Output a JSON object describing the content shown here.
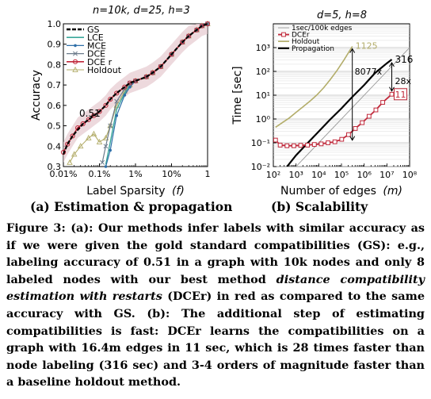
{
  "left_title": "n=10k, d=25, h=3",
  "right_title": "d=5, h=8",
  "subcaption_a": "(a) Estimation & propagation",
  "subcaption_b": "(b) Scalability",
  "caption": {
    "p1": "Figure 3: (a): Our methods infer labels with similar accuracy as if we were given the gold standard compatibilities (GS): e.g., labeling accuracy of 0.51 in a graph with 10k nodes and only 8 labeled nodes with our best method ",
    "em1": "distance compatibility estimation with restarts",
    "p2": " (DCEr) in red as compared to the same accuracy with GS. (b): The additional step of estimating compatibilities is fast: DCEr learns the compatibilities on a graph with 16.4m edges in 11 sec, which is 28 times faster than node labeling (316 sec) and 3-4 orders of magnitude faster than a baseline holdout method."
  },
  "colors": {
    "GS": "#000000",
    "LCE": "#3aa89b",
    "MCE": "#2e6fa8",
    "DCE": "#6b7a8a",
    "DCEr": "#c0283a",
    "Holdout": "#b3ad6a",
    "Propagation": "#000000",
    "ref": "#999999"
  },
  "chart_data": [
    {
      "type": "line",
      "ylabel": "Accuracy",
      "xlabel": "Label Sparsity",
      "xlabel_var": "(f)",
      "xscale": "log",
      "xlim": [
        0.0001,
        1
      ],
      "ylim": [
        0.3,
        1.0
      ],
      "xticks": [
        0.0001,
        0.001,
        0.01,
        0.1,
        1
      ],
      "xtick_labels": [
        "0.01%",
        "0.1%",
        "1%",
        "10%",
        "1"
      ],
      "yticks": [
        0.3,
        0.4,
        0.5,
        0.6,
        0.7,
        0.8,
        0.9,
        1.0
      ],
      "ytick_labels": [
        "0.3",
        "0.4",
        "0.5",
        "0.6",
        "0.7",
        "0.8",
        "0.9",
        "1.0"
      ],
      "legend": [
        "GS",
        "LCE",
        "MCE",
        "DCE",
        "DCE r",
        "Holdout"
      ],
      "legend_position": "top-left",
      "annotations": [
        {
          "text": "0.51",
          "x": 0.0003,
          "y": 0.55
        }
      ],
      "series": [
        {
          "name": "GS",
          "x": [
            0.0001,
            0.00013,
            0.00018,
            0.00025,
            0.00035,
            0.0005,
            0.0007,
            0.001,
            0.0015,
            0.002,
            0.003,
            0.005,
            0.007,
            0.01,
            0.02,
            0.03,
            0.05,
            0.1,
            0.2,
            0.3,
            0.5,
            0.7,
            1
          ],
          "y": [
            0.36,
            0.41,
            0.45,
            0.48,
            0.51,
            0.53,
            0.55,
            0.57,
            0.6,
            0.63,
            0.66,
            0.69,
            0.71,
            0.72,
            0.74,
            0.76,
            0.79,
            0.85,
            0.91,
            0.94,
            0.97,
            0.99,
            1.0
          ]
        },
        {
          "name": "LCE",
          "x": [
            0.0015,
            0.002,
            0.003,
            0.005,
            0.007,
            0.01,
            0.02,
            0.03,
            0.05,
            0.1,
            0.2,
            0.3,
            0.5,
            0.7,
            1
          ],
          "y": [
            0.31,
            0.42,
            0.58,
            0.66,
            0.7,
            0.72,
            0.74,
            0.76,
            0.79,
            0.85,
            0.91,
            0.94,
            0.97,
            0.99,
            1.0
          ]
        },
        {
          "name": "MCE",
          "x": [
            0.0015,
            0.002,
            0.003,
            0.005,
            0.007,
            0.01,
            0.02,
            0.03,
            0.05,
            0.1,
            0.2,
            0.3,
            0.5,
            0.7,
            1
          ],
          "y": [
            0.3,
            0.38,
            0.55,
            0.65,
            0.69,
            0.72,
            0.74,
            0.76,
            0.79,
            0.85,
            0.91,
            0.94,
            0.97,
            0.99,
            1.0
          ]
        },
        {
          "name": "DCE",
          "x": [
            0.0012,
            0.0015,
            0.002,
            0.003,
            0.005,
            0.007,
            0.01,
            0.02,
            0.03,
            0.05,
            0.1,
            0.2,
            0.3,
            0.5,
            0.7,
            1
          ],
          "y": [
            0.32,
            0.4,
            0.5,
            0.62,
            0.68,
            0.71,
            0.72,
            0.74,
            0.76,
            0.79,
            0.85,
            0.91,
            0.94,
            0.97,
            0.99,
            1.0
          ]
        },
        {
          "name": "DCE r",
          "x": [
            0.0001,
            0.00013,
            0.00018,
            0.00025,
            0.00035,
            0.0005,
            0.0007,
            0.001,
            0.0015,
            0.002,
            0.003,
            0.005,
            0.007,
            0.01,
            0.02,
            0.03,
            0.05,
            0.1,
            0.2,
            0.3,
            0.5,
            0.7,
            1
          ],
          "y": [
            0.37,
            0.41,
            0.45,
            0.49,
            0.51,
            0.53,
            0.55,
            0.57,
            0.6,
            0.63,
            0.66,
            0.69,
            0.71,
            0.72,
            0.74,
            0.76,
            0.79,
            0.85,
            0.91,
            0.94,
            0.97,
            0.99,
            1.0
          ]
        },
        {
          "name": "Holdout",
          "x": [
            0.00015,
            0.0002,
            0.0003,
            0.0005,
            0.0007,
            0.001,
            0.0015,
            0.002,
            0.003,
            0.005,
            0.007,
            0.01,
            0.02,
            0.03,
            0.05,
            0.1,
            0.2,
            0.3,
            0.5,
            0.7,
            1
          ],
          "y": [
            0.32,
            0.36,
            0.4,
            0.44,
            0.46,
            0.42,
            0.44,
            0.5,
            0.6,
            0.67,
            0.7,
            0.72,
            0.74,
            0.76,
            0.79,
            0.85,
            0.91,
            0.94,
            0.97,
            0.99,
            1.0
          ]
        }
      ]
    },
    {
      "type": "line",
      "ylabel": "Time [sec]",
      "xlabel": "Number of edges",
      "xlabel_var": "(m)",
      "xscale": "log",
      "yscale": "log",
      "xlim": [
        100,
        100000000
      ],
      "ylim": [
        0.01,
        10000
      ],
      "xtick_labels": [
        "10²",
        "10³",
        "10⁴",
        "10⁵",
        "10⁶",
        "10⁷",
        "10⁸"
      ],
      "ytick_labels": [
        "10⁻²",
        "10⁻¹",
        "10⁰",
        "10¹",
        "10²",
        "10³"
      ],
      "legend": [
        "1sec/100k edges",
        "DCEr",
        "Holdout",
        "Propagation"
      ],
      "legend_position": "top-left",
      "annotations": [
        {
          "text": "1125",
          "x": 300000,
          "y": 1125
        },
        {
          "text": "8077x",
          "x": 300000,
          "y": 100
        },
        {
          "text": "316",
          "x": 16400000,
          "y": 316
        },
        {
          "text": "28x",
          "x": 16400000,
          "y": 40
        },
        {
          "text": "11",
          "x": 16400000,
          "y": 11
        }
      ],
      "series": [
        {
          "name": "1sec/100k edges",
          "x": [
            100,
            100000000
          ],
          "y": [
            0.001,
            1000
          ]
        },
        {
          "name": "DCEr",
          "x": [
            125,
            200,
            400,
            800,
            1600,
            3200,
            6400,
            12800,
            25600,
            51200,
            102400,
            204800,
            409600,
            819200,
            1638400,
            3276800,
            6553600,
            16400000
          ],
          "y": [
            0.13,
            0.08,
            0.075,
            0.075,
            0.078,
            0.08,
            0.085,
            0.09,
            0.1,
            0.11,
            0.14,
            0.22,
            0.4,
            0.7,
            1.3,
            2.4,
            5,
            11
          ]
        },
        {
          "name": "Holdout",
          "x": [
            125,
            250,
            500,
            1000,
            2000,
            4000,
            8000,
            16000,
            32000,
            64000,
            128000,
            300000
          ],
          "y": [
            0.45,
            0.7,
            1.1,
            1.9,
            3.2,
            5.5,
            10,
            20,
            45,
            110,
            300,
            1125
          ]
        },
        {
          "name": "Propagation",
          "x": [
            400,
            1000,
            3000,
            10000,
            30000,
            100000,
            300000,
            1000000,
            3000000,
            10000000,
            16400000
          ],
          "y": [
            0.01,
            0.03,
            0.09,
            0.3,
            0.9,
            2.8,
            8.5,
            27,
            85,
            220,
            316
          ]
        }
      ]
    }
  ]
}
